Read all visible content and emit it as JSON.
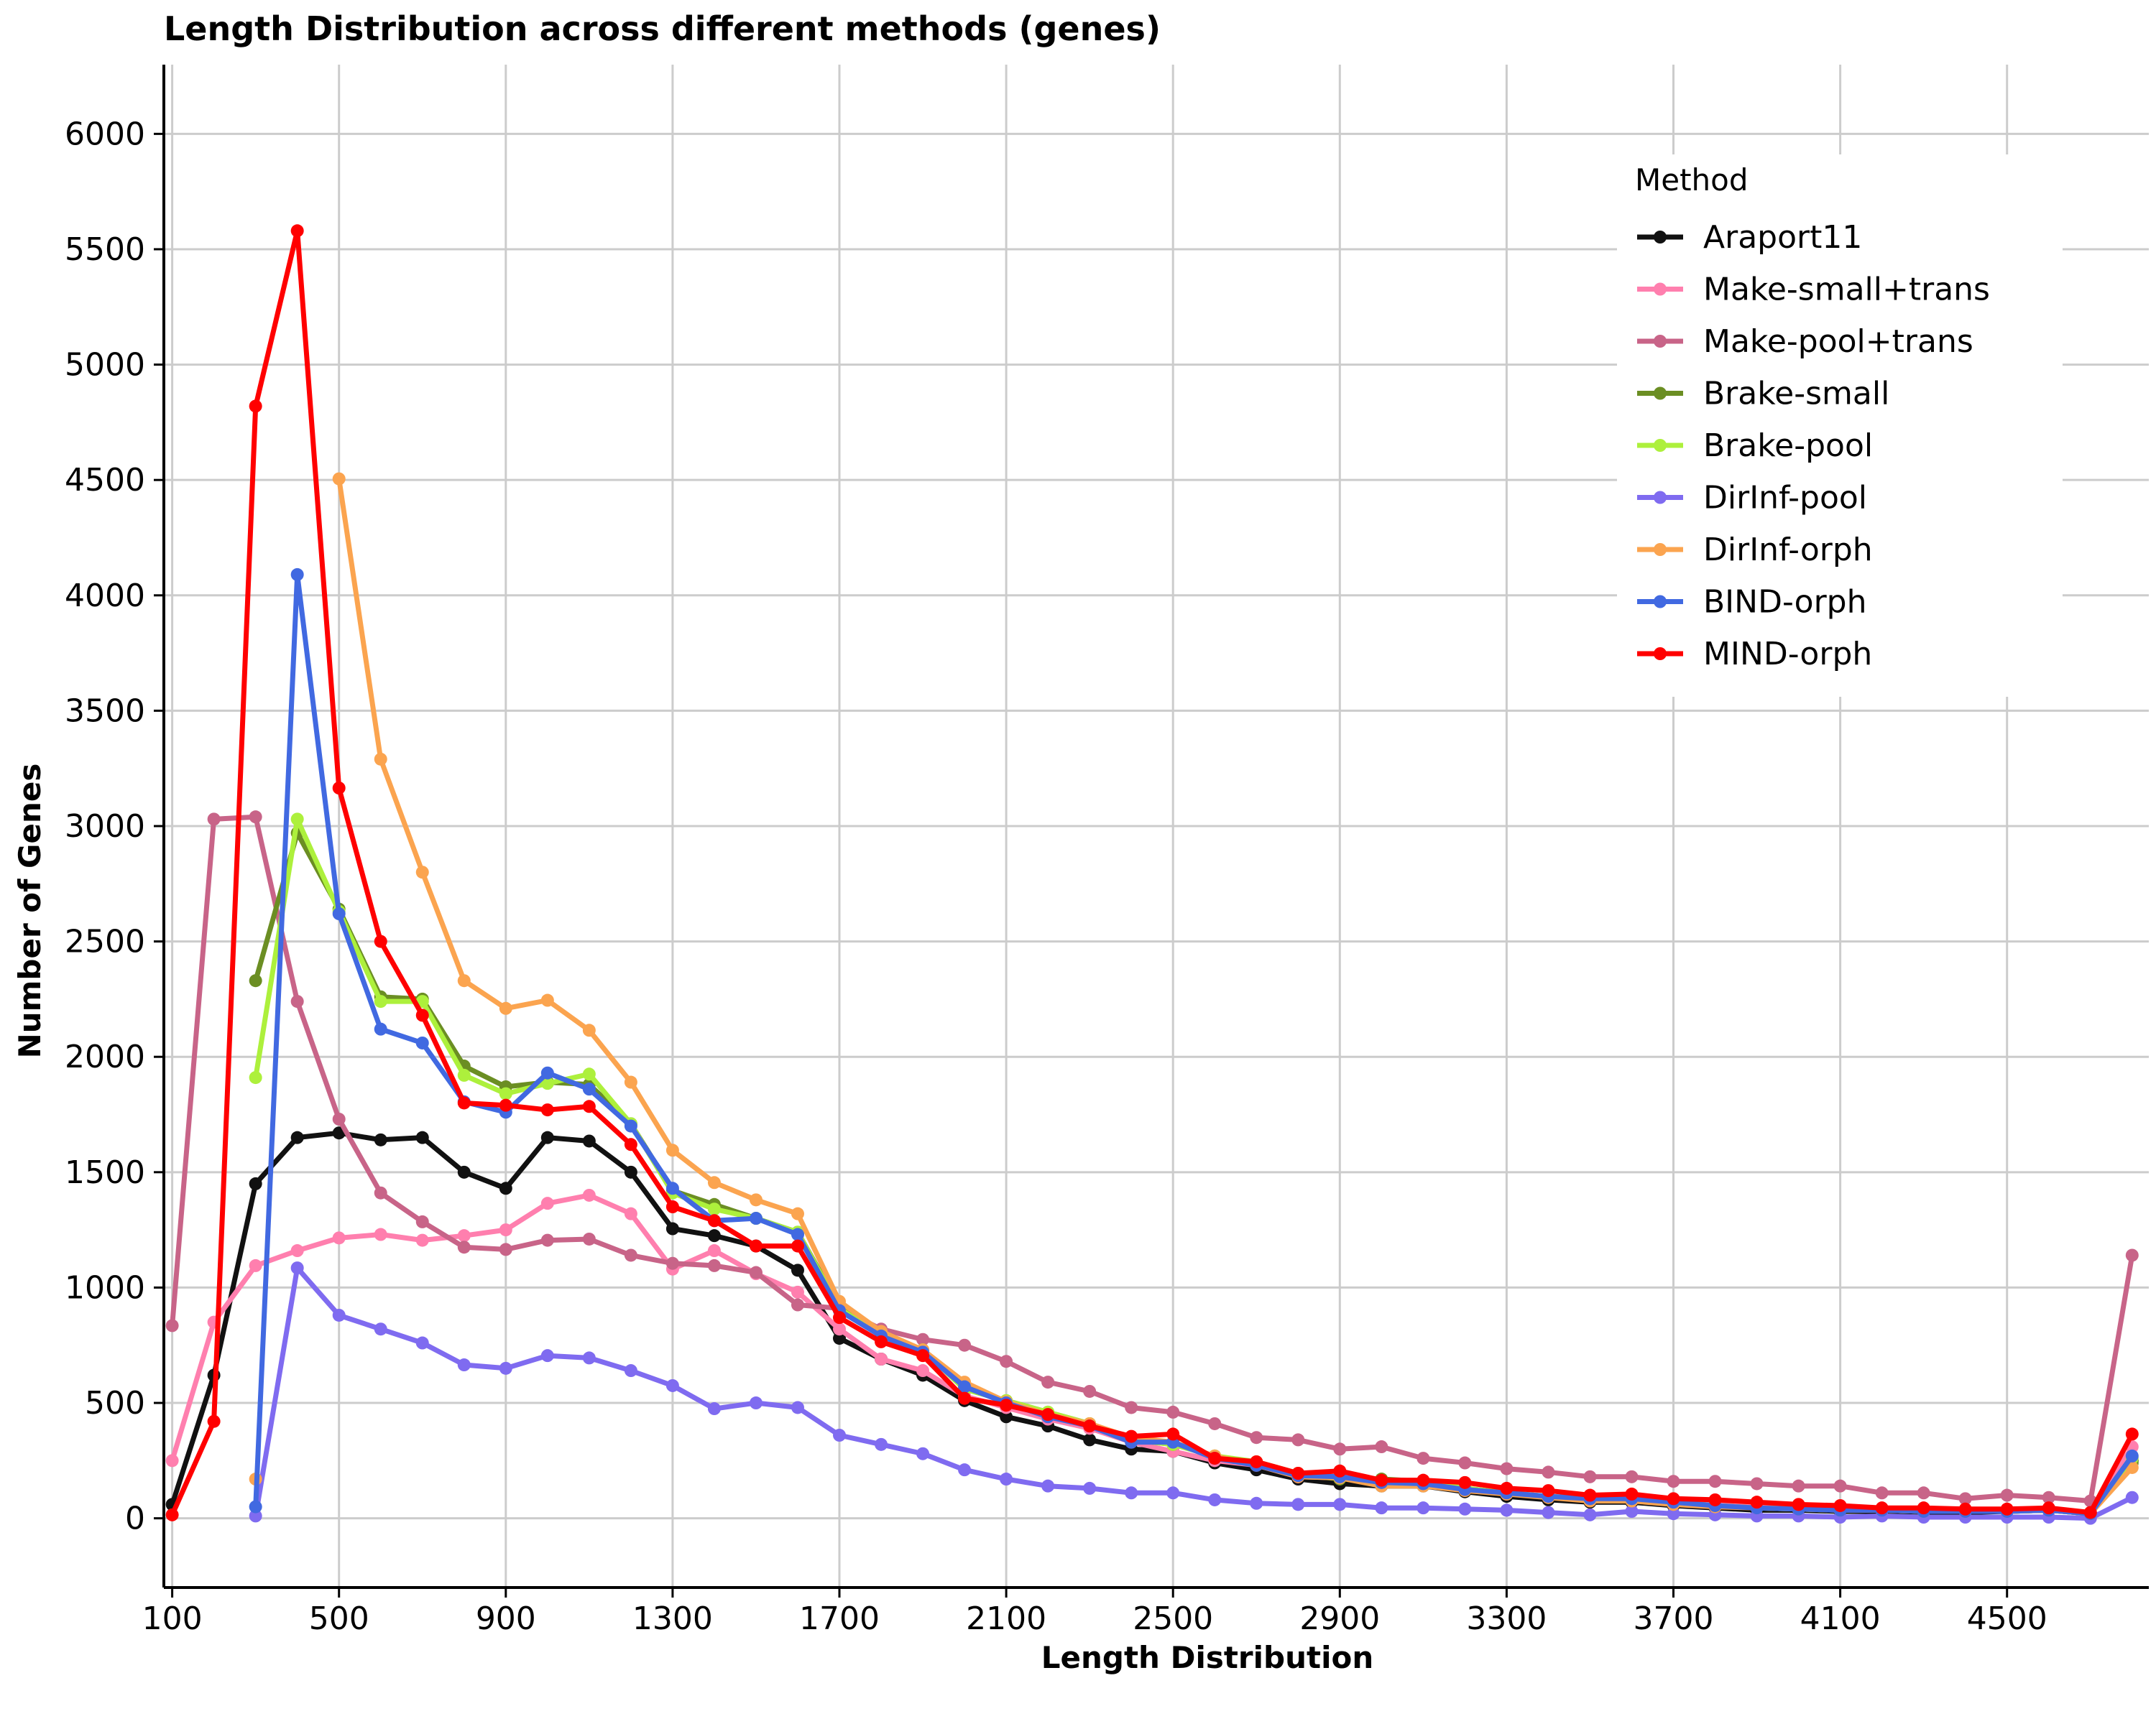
{
  "chart_data": {
    "type": "line",
    "title": "Length Distribution across different methods (genes)",
    "xlabel": "Length Distribution",
    "ylabel": "Number of Genes",
    "xlim": [
      80,
      4840
    ],
    "ylim": [
      -300,
      6300
    ],
    "x_ticks": [
      100,
      500,
      900,
      1300,
      1700,
      2100,
      2500,
      2900,
      3300,
      3700,
      4100,
      4500
    ],
    "y_ticks": [
      0,
      500,
      1000,
      1500,
      2000,
      2500,
      3000,
      3500,
      4000,
      4500,
      5000,
      5500,
      6000
    ],
    "grid": true,
    "legend": {
      "title": "Method",
      "placement": "top-right"
    },
    "x": [
      100,
      200,
      300,
      400,
      500,
      600,
      700,
      800,
      900,
      1000,
      1100,
      1200,
      1300,
      1400,
      1500,
      1600,
      1700,
      1800,
      1900,
      2000,
      2100,
      2200,
      2300,
      2400,
      2500,
      2600,
      2700,
      2800,
      2900,
      3000,
      3100,
      3200,
      3300,
      3400,
      3500,
      3600,
      3700,
      3800,
      3900,
      4000,
      4100,
      4200,
      4300,
      4400,
      4500,
      4600,
      4700,
      4800
    ],
    "series": [
      {
        "name": "Araport11",
        "color": "#111111",
        "values": [
          60,
          620,
          1450,
          1650,
          1670,
          1640,
          1650,
          1500,
          1430,
          1650,
          1635,
          1500,
          1255,
          1225,
          1180,
          1075,
          780,
          690,
          620,
          510,
          440,
          400,
          340,
          300,
          290,
          240,
          210,
          170,
          150,
          140,
          140,
          115,
          95,
          80,
          70,
          70,
          55,
          45,
          35,
          35,
          30,
          30,
          25,
          25,
          30,
          35,
          20,
          250
        ]
      },
      {
        "name": "Make-small+trans",
        "color": "#ff7fae",
        "values": [
          250,
          850,
          1095,
          1160,
          1215,
          1230,
          1205,
          1225,
          1250,
          1365,
          1400,
          1320,
          1080,
          1160,
          1060,
          980,
          820,
          690,
          640,
          530,
          480,
          430,
          390,
          330,
          290,
          250,
          230,
          180,
          175,
          150,
          150,
          125,
          105,
          95,
          85,
          80,
          70,
          60,
          50,
          45,
          40,
          35,
          30,
          30,
          35,
          40,
          25,
          310
        ]
      },
      {
        "name": "Make-pool+trans",
        "color": "#c86488",
        "values": [
          835,
          3030,
          3040,
          2240,
          1730,
          1410,
          1285,
          1175,
          1165,
          1205,
          1210,
          1140,
          1105,
          1095,
          1065,
          925,
          910,
          820,
          775,
          750,
          680,
          590,
          550,
          480,
          460,
          410,
          350,
          340,
          300,
          310,
          260,
          240,
          215,
          200,
          180,
          180,
          160,
          160,
          150,
          140,
          140,
          110,
          110,
          85,
          100,
          90,
          75,
          1140
        ]
      },
      {
        "name": "Brake-small",
        "color": "#6b8e23",
        "values": [
          null,
          null,
          2330,
          2970,
          2640,
          2260,
          2250,
          1960,
          1870,
          1890,
          1880,
          1710,
          1420,
          1360,
          1300,
          1240,
          920,
          800,
          730,
          560,
          510,
          460,
          410,
          340,
          320,
          270,
          240,
          190,
          170,
          170,
          160,
          130,
          110,
          95,
          85,
          85,
          70,
          55,
          45,
          40,
          35,
          35,
          30,
          30,
          30,
          35,
          20,
          240
        ]
      },
      {
        "name": "Brake-pool",
        "color": "#adf03c",
        "values": [
          null,
          null,
          1910,
          3030,
          2630,
          2240,
          2240,
          1920,
          1840,
          1885,
          1925,
          1710,
          1410,
          1340,
          1300,
          1240,
          910,
          790,
          730,
          560,
          510,
          460,
          410,
          340,
          320,
          270,
          245,
          195,
          175,
          165,
          160,
          130,
          110,
          95,
          85,
          85,
          70,
          55,
          45,
          40,
          35,
          35,
          30,
          30,
          30,
          35,
          20,
          260
        ]
      },
      {
        "name": "DirInf-pool",
        "color": "#7f6bf0",
        "values": [
          null,
          null,
          10,
          1085,
          880,
          820,
          760,
          665,
          650,
          705,
          695,
          640,
          575,
          475,
          500,
          480,
          360,
          320,
          280,
          210,
          170,
          140,
          130,
          110,
          110,
          80,
          65,
          60,
          60,
          45,
          45,
          40,
          35,
          25,
          15,
          30,
          20,
          15,
          10,
          10,
          5,
          10,
          5,
          5,
          5,
          5,
          0,
          90
        ]
      },
      {
        "name": "DirInf-orph",
        "color": "#fba44f",
        "values": [
          null,
          null,
          170,
          null,
          4505,
          3290,
          2800,
          2330,
          2210,
          2245,
          2115,
          1890,
          1595,
          1455,
          1380,
          1320,
          940,
          810,
          730,
          590,
          505,
          450,
          410,
          350,
          330,
          270,
          230,
          180,
          175,
          140,
          140,
          120,
          105,
          90,
          75,
          75,
          60,
          50,
          45,
          40,
          35,
          35,
          30,
          30,
          30,
          35,
          20,
          220
        ]
      },
      {
        "name": "BIND-orph",
        "color": "#4169e1",
        "values": [
          null,
          null,
          50,
          4090,
          2620,
          2120,
          2060,
          1805,
          1760,
          1930,
          1860,
          1700,
          1430,
          1290,
          1300,
          1230,
          900,
          790,
          720,
          570,
          500,
          440,
          400,
          330,
          330,
          260,
          230,
          185,
          180,
          155,
          150,
          125,
          110,
          95,
          85,
          85,
          70,
          55,
          45,
          40,
          35,
          35,
          30,
          30,
          30,
          35,
          20,
          270
        ]
      },
      {
        "name": "MIND-orph",
        "color": "#ff0000",
        "values": [
          15,
          420,
          4820,
          5580,
          3165,
          2500,
          2180,
          1800,
          1790,
          1770,
          1785,
          1620,
          1350,
          1290,
          1180,
          1180,
          870,
          765,
          705,
          520,
          490,
          450,
          400,
          355,
          365,
          260,
          245,
          195,
          205,
          165,
          165,
          155,
          130,
          120,
          100,
          105,
          85,
          80,
          70,
          60,
          55,
          45,
          45,
          40,
          40,
          45,
          25,
          365
        ]
      }
    ]
  }
}
